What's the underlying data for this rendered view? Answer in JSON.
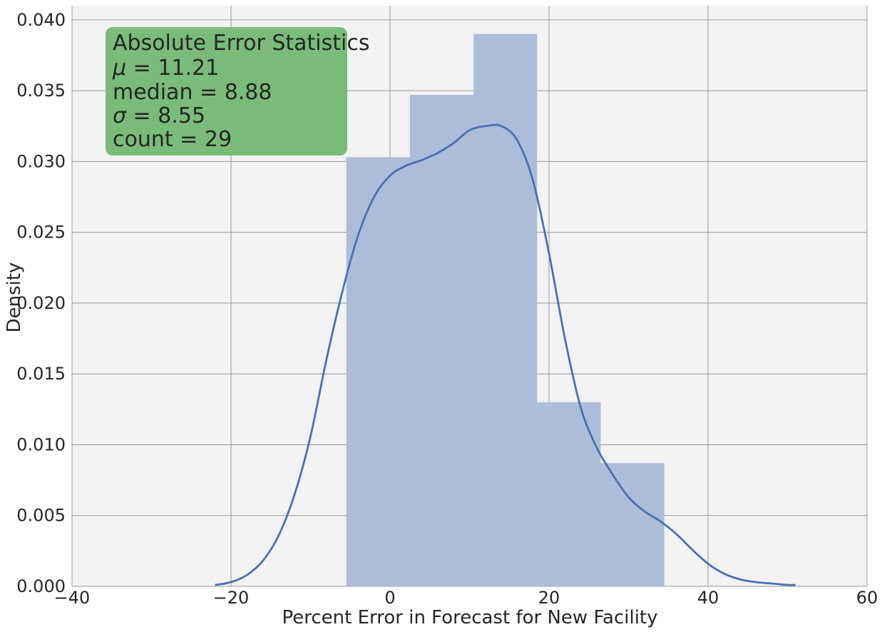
{
  "chart_data": {
    "type": "bar",
    "subtype": "histogram-with-kde",
    "title": "",
    "xlabel": "Percent Error in Forecast for New Facility",
    "ylabel": "Density",
    "xlim": [
      -40,
      60
    ],
    "ylim": [
      0,
      0.041
    ],
    "x_ticks": [
      -40,
      -20,
      0,
      20,
      40,
      60
    ],
    "x_tick_labels": [
      "−40",
      "−20",
      "0",
      "20",
      "40",
      "60"
    ],
    "y_ticks": [
      0,
      0.005,
      0.01,
      0.015,
      0.02,
      0.025,
      0.03,
      0.035,
      0.04
    ],
    "y_tick_labels": [
      "0.000",
      "0.005",
      "0.010",
      "0.015",
      "0.020",
      "0.025",
      "0.030",
      "0.035",
      "0.040"
    ],
    "grid": true,
    "bins": [
      {
        "x0": -5.5,
        "x1": 2.5,
        "density": 0.0303
      },
      {
        "x0": 2.5,
        "x1": 10.5,
        "density": 0.0347
      },
      {
        "x0": 10.5,
        "x1": 18.5,
        "density": 0.039
      },
      {
        "x0": 18.5,
        "x1": 26.5,
        "density": 0.013
      },
      {
        "x0": 26.5,
        "x1": 34.5,
        "density": 0.0087
      }
    ],
    "kde": {
      "x": [
        -22,
        -20,
        -18,
        -16,
        -14,
        -12,
        -10,
        -8,
        -6,
        -4,
        -2,
        0,
        2,
        4,
        6,
        8,
        10,
        12,
        14,
        16,
        18,
        20,
        22,
        24,
        26,
        28,
        30,
        32,
        34,
        36,
        38,
        40,
        42,
        44,
        46,
        48,
        50,
        51
      ],
      "y": [
        0.0001,
        0.0003,
        0.0008,
        0.0018,
        0.0036,
        0.0065,
        0.0106,
        0.016,
        0.0208,
        0.0248,
        0.0275,
        0.029,
        0.0297,
        0.0301,
        0.0306,
        0.0313,
        0.0322,
        0.0325,
        0.0325,
        0.0315,
        0.0286,
        0.0235,
        0.0175,
        0.0126,
        0.0098,
        0.0079,
        0.0063,
        0.0053,
        0.0046,
        0.0037,
        0.0026,
        0.0016,
        0.0009,
        0.0005,
        0.0003,
        0.0002,
        0.0001,
        0.0001
      ]
    },
    "colors": {
      "bars": "#adbdd7",
      "kde_line": "#4c72b0",
      "plot_bg": "#f2f2f2",
      "grid": "#9a9a9a",
      "stats_box": "#7aba7a"
    },
    "stats_box": {
      "title": "Absolute Error Statistics",
      "lines": [
        {
          "symbol": "μ",
          "value": "11.21"
        },
        {
          "symbol": "median",
          "value": "8.88"
        },
        {
          "symbol": "σ",
          "value": "8.55"
        },
        {
          "symbol": "count",
          "value": "29"
        }
      ]
    }
  }
}
